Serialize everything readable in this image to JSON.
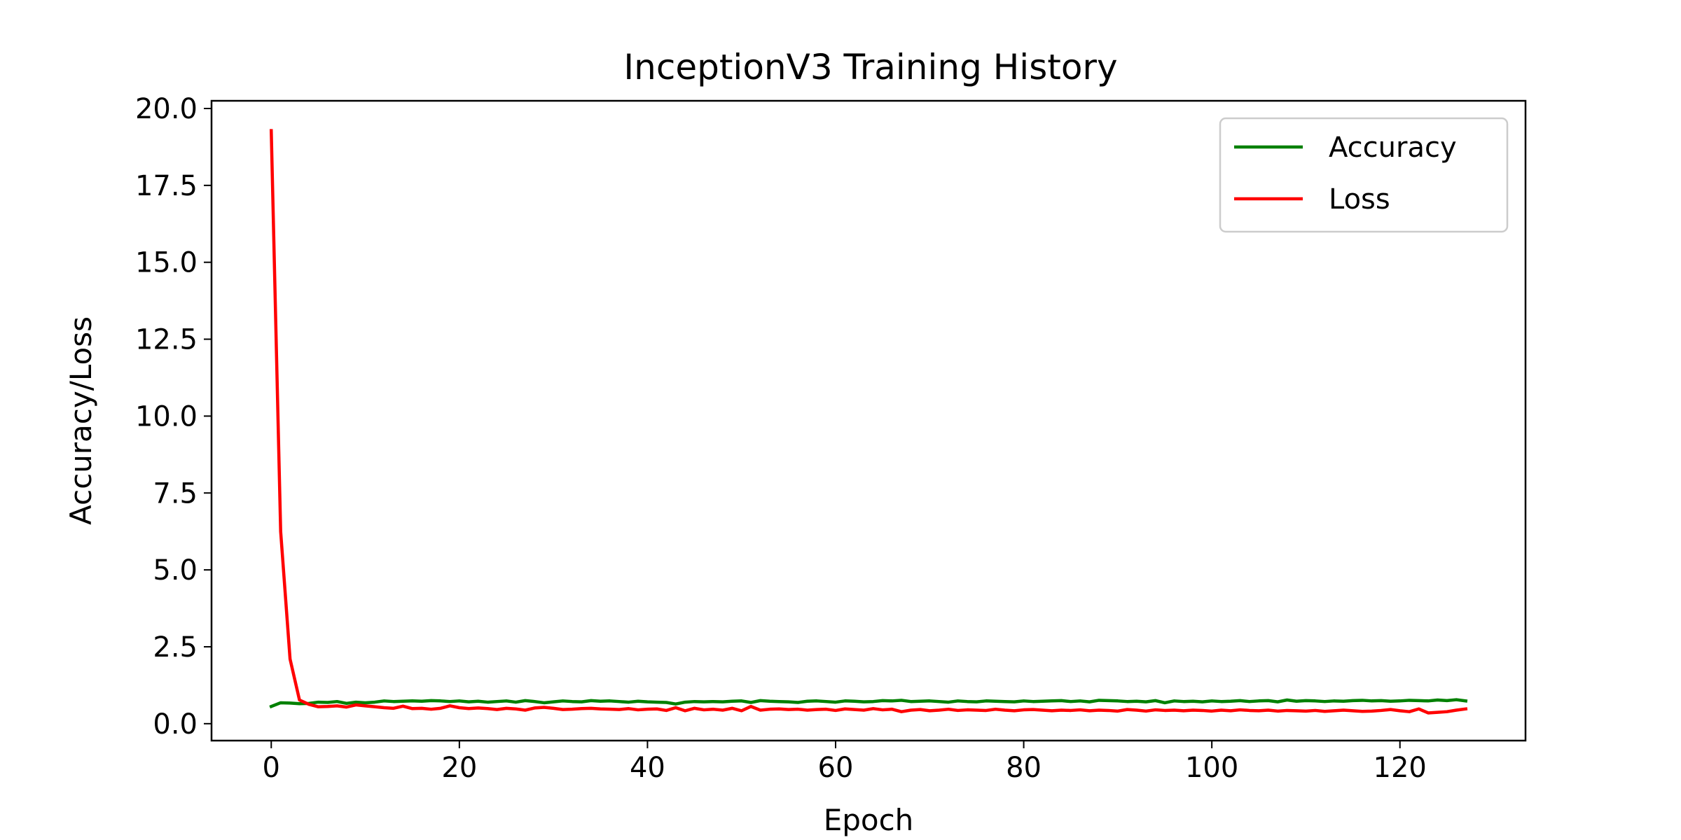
{
  "chart_data": {
    "type": "line",
    "title": "InceptionV3 Training History",
    "xlabel": "Epoch",
    "ylabel": "Accuracy/Loss",
    "xlim": [
      -6.35,
      133.35
    ],
    "ylim": [
      -0.55,
      20.25
    ],
    "xticks": [
      0,
      20,
      40,
      60,
      80,
      100,
      120
    ],
    "yticks": [
      0.0,
      2.5,
      5.0,
      7.5,
      10.0,
      12.5,
      15.0,
      17.5,
      20.0
    ],
    "xtick_labels": [
      "0",
      "20",
      "40",
      "60",
      "80",
      "100",
      "120"
    ],
    "ytick_labels": [
      "0.0",
      "2.5",
      "5.0",
      "7.5",
      "10.0",
      "12.5",
      "15.0",
      "17.5",
      "20.0"
    ],
    "grid": false,
    "legend_position": "top-right",
    "series": [
      {
        "name": "Accuracy",
        "color": "#008000",
        "values": [
          0.56,
          0.68,
          0.67,
          0.65,
          0.66,
          0.7,
          0.69,
          0.72,
          0.66,
          0.7,
          0.68,
          0.7,
          0.74,
          0.72,
          0.73,
          0.74,
          0.73,
          0.75,
          0.74,
          0.72,
          0.74,
          0.71,
          0.73,
          0.7,
          0.72,
          0.74,
          0.7,
          0.75,
          0.72,
          0.68,
          0.71,
          0.74,
          0.72,
          0.71,
          0.75,
          0.73,
          0.74,
          0.72,
          0.7,
          0.73,
          0.71,
          0.7,
          0.69,
          0.64,
          0.7,
          0.72,
          0.71,
          0.72,
          0.71,
          0.73,
          0.74,
          0.69,
          0.75,
          0.73,
          0.72,
          0.71,
          0.69,
          0.73,
          0.74,
          0.72,
          0.7,
          0.74,
          0.73,
          0.71,
          0.72,
          0.75,
          0.74,
          0.76,
          0.72,
          0.73,
          0.74,
          0.72,
          0.7,
          0.74,
          0.72,
          0.71,
          0.74,
          0.73,
          0.72,
          0.71,
          0.74,
          0.72,
          0.73,
          0.74,
          0.75,
          0.72,
          0.74,
          0.71,
          0.76,
          0.75,
          0.74,
          0.72,
          0.73,
          0.71,
          0.75,
          0.68,
          0.74,
          0.72,
          0.73,
          0.71,
          0.74,
          0.72,
          0.73,
          0.75,
          0.72,
          0.74,
          0.75,
          0.71,
          0.77,
          0.73,
          0.75,
          0.74,
          0.72,
          0.74,
          0.73,
          0.75,
          0.76,
          0.74,
          0.75,
          0.73,
          0.74,
          0.76,
          0.75,
          0.74,
          0.77,
          0.75,
          0.78,
          0.74
        ]
      },
      {
        "name": "Loss",
        "color": "#ff0000",
        "values": [
          19.28,
          6.25,
          2.1,
          0.77,
          0.63,
          0.55,
          0.56,
          0.58,
          0.54,
          0.61,
          0.58,
          0.55,
          0.52,
          0.5,
          0.57,
          0.49,
          0.5,
          0.47,
          0.5,
          0.58,
          0.52,
          0.49,
          0.51,
          0.49,
          0.46,
          0.5,
          0.48,
          0.44,
          0.51,
          0.53,
          0.5,
          0.46,
          0.47,
          0.49,
          0.5,
          0.48,
          0.47,
          0.46,
          0.49,
          0.45,
          0.47,
          0.48,
          0.43,
          0.52,
          0.42,
          0.5,
          0.45,
          0.47,
          0.44,
          0.5,
          0.42,
          0.56,
          0.44,
          0.47,
          0.48,
          0.46,
          0.47,
          0.44,
          0.46,
          0.47,
          0.43,
          0.48,
          0.46,
          0.44,
          0.49,
          0.45,
          0.47,
          0.39,
          0.44,
          0.46,
          0.42,
          0.44,
          0.47,
          0.43,
          0.45,
          0.44,
          0.43,
          0.47,
          0.44,
          0.42,
          0.45,
          0.46,
          0.44,
          0.42,
          0.44,
          0.43,
          0.45,
          0.42,
          0.44,
          0.43,
          0.41,
          0.46,
          0.44,
          0.41,
          0.45,
          0.43,
          0.44,
          0.42,
          0.44,
          0.43,
          0.41,
          0.44,
          0.42,
          0.45,
          0.43,
          0.42,
          0.44,
          0.41,
          0.43,
          0.42,
          0.41,
          0.43,
          0.4,
          0.42,
          0.44,
          0.42,
          0.4,
          0.41,
          0.43,
          0.46,
          0.42,
          0.39,
          0.48,
          0.35,
          0.37,
          0.39,
          0.44,
          0.48
        ]
      }
    ]
  }
}
